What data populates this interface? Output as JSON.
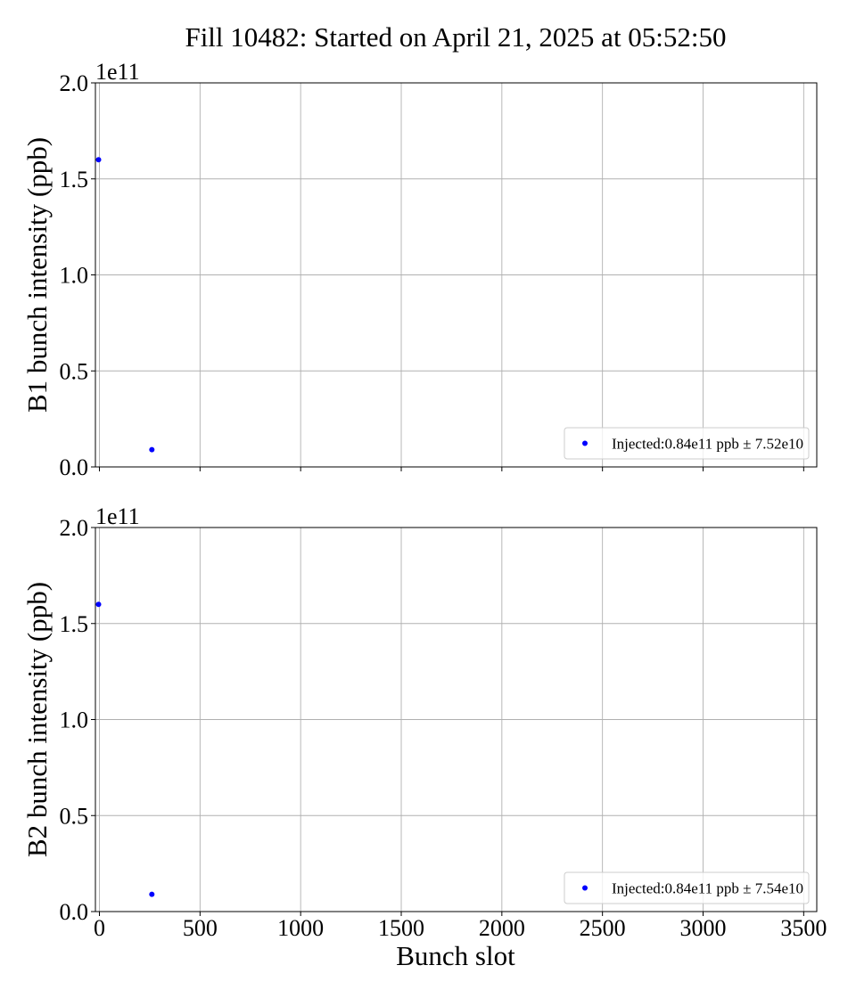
{
  "figure_title": "Fill 10482: Started on April 21, 2025 at 05:52:50",
  "xlabel": "Bunch slot",
  "colors": {
    "marker": "#0000ff",
    "grid": "#b0b0b0",
    "axes": "#000000"
  },
  "chart_data": [
    {
      "type": "scatter",
      "name": "B1",
      "ylabel": "B1 bunch intensity (ppb)",
      "xlim": [
        -20,
        3565
      ],
      "ylim": [
        0,
        2.0
      ],
      "y_offset_label": "1e11",
      "xticks": [
        "0",
        "500",
        "1000",
        "1500",
        "2000",
        "2500",
        "3000",
        "3500"
      ],
      "yticks": [
        "0.0",
        "0.5",
        "1.0",
        "1.5",
        "2.0"
      ],
      "xtick_labels_visible": false,
      "grid": true,
      "legend_position": "lower-right",
      "series": [
        {
          "label": "Injected:0.84e11 ppb ± 7.52e10",
          "x": [
            0,
            265
          ],
          "y": [
            1.6,
            0.09
          ]
        }
      ]
    },
    {
      "type": "scatter",
      "name": "B2",
      "ylabel": "B2 bunch intensity (ppb)",
      "xlim": [
        -20,
        3565
      ],
      "ylim": [
        0,
        2.0
      ],
      "y_offset_label": "1e11",
      "xticks": [
        "0",
        "500",
        "1000",
        "1500",
        "2000",
        "2500",
        "3000",
        "3500"
      ],
      "yticks": [
        "0.0",
        "0.5",
        "1.0",
        "1.5",
        "2.0"
      ],
      "xtick_labels_visible": true,
      "grid": true,
      "legend_position": "lower-right",
      "series": [
        {
          "label": "Injected:0.84e11 ppb ± 7.54e10",
          "x": [
            0,
            265
          ],
          "y": [
            1.6,
            0.09
          ]
        }
      ]
    }
  ]
}
